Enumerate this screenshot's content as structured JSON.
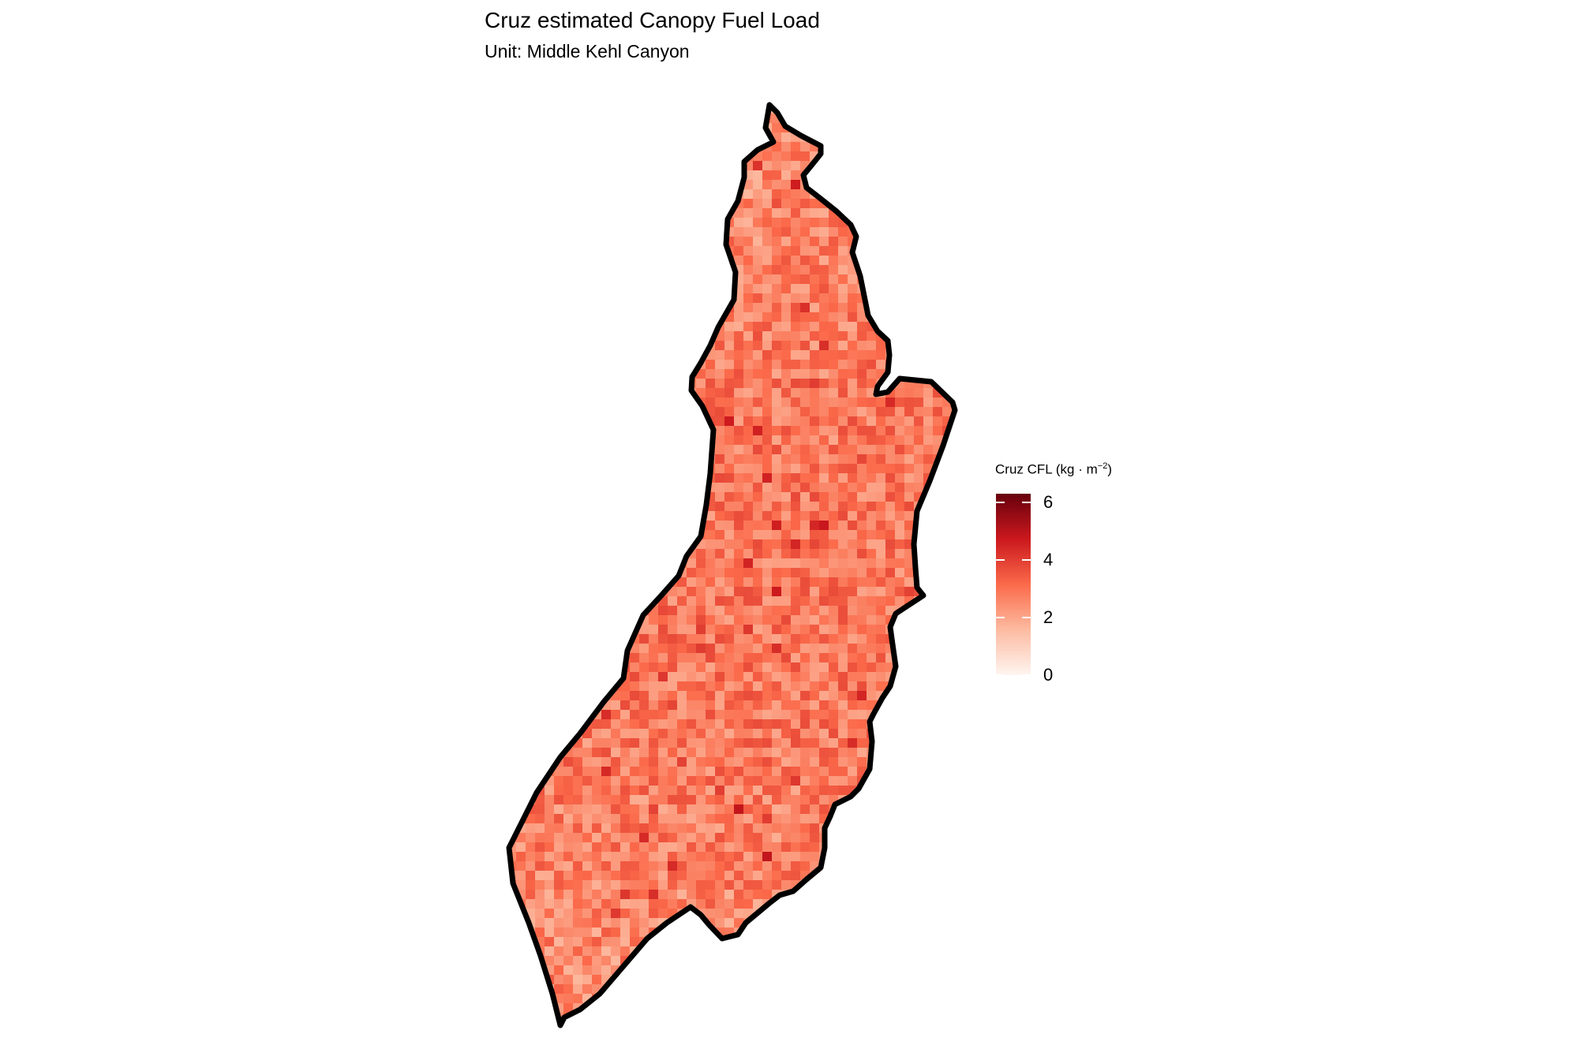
{
  "title": "Cruz estimated Canopy Fuel Load",
  "subtitle": "Unit: Middle Kehl Canyon",
  "legend": {
    "title_prefix": "Cruz CFL (kg",
    "title_dot": "·",
    "title_unit": "m",
    "title_exponent": "−2",
    "title_suffix": ")",
    "ticks": [
      {
        "value": 0,
        "label": "0"
      },
      {
        "value": 2,
        "label": "2"
      },
      {
        "value": 4,
        "label": "4"
      },
      {
        "value": 6,
        "label": "6"
      }
    ],
    "min": 0,
    "max": 6.3,
    "palette": [
      "#fff5f0",
      "#fcbba1",
      "#fb6a4a",
      "#cb181d",
      "#67000d"
    ]
  },
  "map": {
    "fill_mean": 2.4,
    "fill_spread": 0.9,
    "boundary_color": "#000000"
  }
}
